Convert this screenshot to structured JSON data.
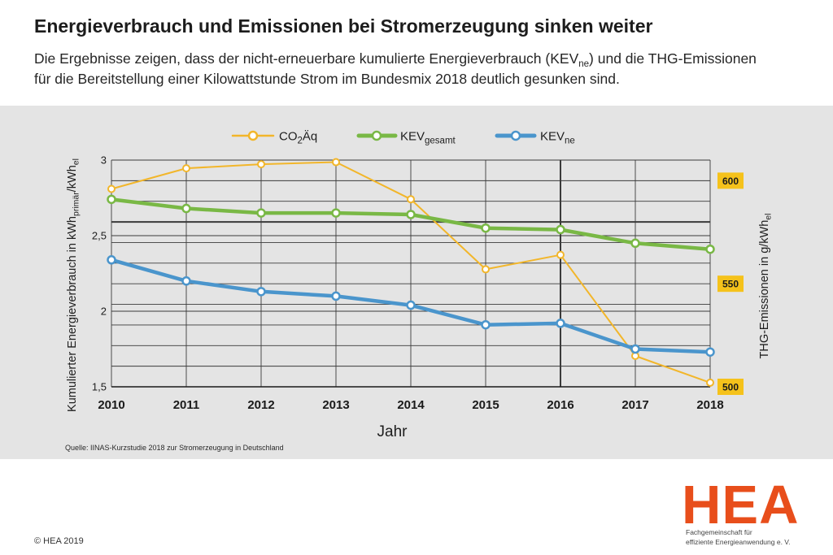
{
  "header": {
    "title": "Energieverbrauch und Emissionen bei Stromerzeugung sinken weiter",
    "subtitle_line1_a": "Die Ergebnisse zeigen, dass der nicht-erneuerbare kumulierte Energieverbrauch (KEV",
    "subtitle_line1_sub": "ne",
    "subtitle_line1_b": ") und die THG-Emissionen",
    "subtitle_line2": "für die Bereitstellung einer Kilowattstunde Strom im Bundesmix 2018 deutlich gesunken sind."
  },
  "chart_data": {
    "type": "line",
    "x": [
      2010,
      2011,
      2012,
      2013,
      2014,
      2015,
      2016,
      2017,
      2018
    ],
    "series": [
      {
        "legend": {
          "text": "CO",
          "sub": "2",
          "tail": "Äq"
        },
        "secondary_axis": true,
        "color": "#f2b62a",
        "values": [
          596,
          606,
          608,
          609,
          591,
          557,
          564,
          515,
          502
        ]
      },
      {
        "legend": {
          "text": "KEV",
          "sub": "gesamt"
        },
        "secondary_axis": false,
        "color": "#79b845",
        "values": [
          2.74,
          2.68,
          2.65,
          2.65,
          2.64,
          2.55,
          2.54,
          2.45,
          2.41
        ]
      },
      {
        "legend": {
          "text": "KEV",
          "sub": "ne"
        },
        "secondary_axis": false,
        "color": "#4a95cc",
        "values": [
          2.34,
          2.2,
          2.13,
          2.1,
          2.04,
          1.91,
          1.92,
          1.75,
          1.73
        ]
      }
    ],
    "xlabel": "Jahr",
    "ylabel": {
      "a": "Kumulierter Energieverbrauch in kWh",
      "sub1": "primär",
      "b": "/kWh",
      "sub2": "el"
    },
    "y2label": {
      "a": "THG-Emissionen in g/kWh",
      "sub": "el"
    },
    "ylim": [
      1.5,
      3
    ],
    "y2lim": [
      500,
      610
    ],
    "yticks": [
      {
        "value": 3,
        "label": "3"
      },
      {
        "value": 2.5,
        "label": "2,5"
      },
      {
        "value": 2,
        "label": "2"
      },
      {
        "value": 1.5,
        "label": "1,5"
      }
    ],
    "y2ticks": [
      {
        "value": 600,
        "label": "600"
      },
      {
        "value": 550,
        "label": "550"
      },
      {
        "value": 500,
        "label": "500"
      }
    ],
    "y2tick_box_color": "#f5c21b",
    "grid": true,
    "legend_position": "top-center"
  },
  "source": "Quelle: IINAS-Kurzstudie 2018 zur Stromerzeugung in Deutschland",
  "footer": {
    "copyright": "© HEA 2019",
    "logo_text": "HEA",
    "logo_color": "#e84e1b",
    "org_line1": "Fachgemeinschaft für",
    "org_line2": "effiziente Energieanwendung e. V."
  },
  "colors": {
    "panel": "#e4e4e4",
    "grid": "#3a3a3a",
    "text": "#1e1e1e"
  }
}
